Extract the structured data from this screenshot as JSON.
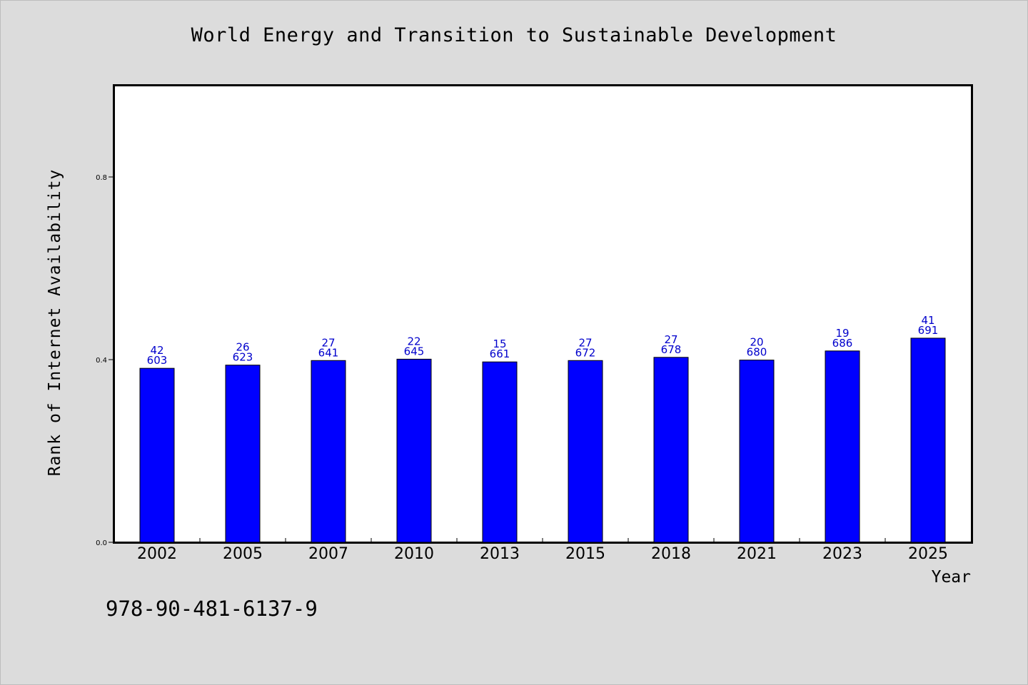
{
  "chart_data": {
    "type": "bar",
    "title": "World Energy and Transition to Sustainable Development",
    "xlabel": "Year",
    "ylabel": "Rank of Internet Availability",
    "ylim": [
      0,
      1.0
    ],
    "yticks": [
      "0.0",
      "0.4",
      "0.8"
    ],
    "grid": false,
    "categories": [
      "2002",
      "2005",
      "2007",
      "2010",
      "2013",
      "2015",
      "2018",
      "2021",
      "2023",
      "2025"
    ],
    "values": [
      0.381,
      0.388,
      0.398,
      0.401,
      0.395,
      0.398,
      0.405,
      0.399,
      0.419,
      0.447
    ],
    "labels_top": [
      "42",
      "26",
      "27",
      "22",
      "15",
      "27",
      "27",
      "20",
      "19",
      "41"
    ],
    "labels_bottom": [
      "603",
      "623",
      "641",
      "645",
      "661",
      "672",
      "678",
      "680",
      "686",
      "691"
    ],
    "bar_color": "#0000ff",
    "label_color": "#0000cc"
  },
  "footer": {
    "isbn": "978-90-481-6137-9"
  }
}
